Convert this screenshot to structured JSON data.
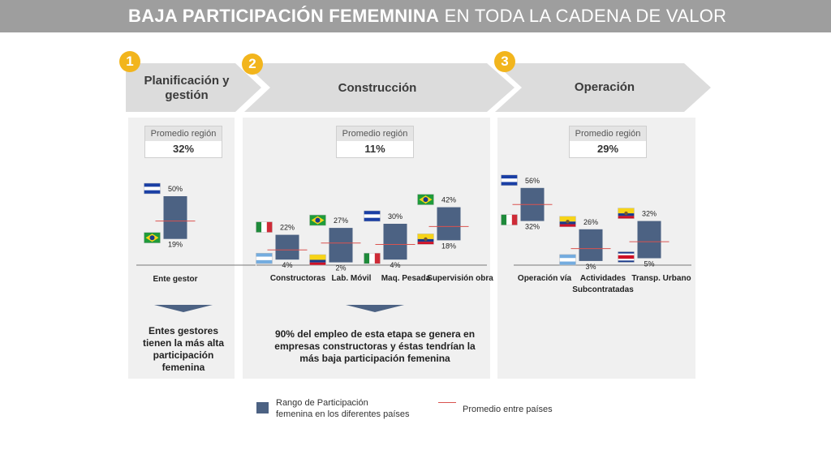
{
  "header": {
    "title_bold": "BAJA PARTICIPACIÓN FEMEMNINA",
    "title_rest": "EN TODA LA CADENA DE VALOR"
  },
  "stages": [
    {
      "number": "1",
      "label_line1": "Planificación y",
      "label_line2": "gestión"
    },
    {
      "number": "2",
      "label": "Construcción"
    },
    {
      "number": "3",
      "label": "Operación"
    }
  ],
  "panels": [
    {
      "avg_label": "Promedio región",
      "avg_value": "32%"
    },
    {
      "avg_label": "Promedio región",
      "avg_value": "11%"
    },
    {
      "avg_label": "Promedio región",
      "avg_value": "29%"
    }
  ],
  "captions": {
    "panel1": [
      "Entes gestores",
      "tienen la más alta",
      "participación",
      "femenina"
    ],
    "panel2": [
      "90% del empleo de esta etapa se genera en",
      "empresas constructoras y éstas tendrían la",
      "más baja participación femenina"
    ]
  },
  "legend": {
    "range_line1": "Rango de Participación",
    "range_line2": "femenina en los diferentes países",
    "avg": "Promedio entre países",
    "range_color": "#4c6283",
    "avg_color": "#d9534f"
  },
  "chart_data": {
    "type": "bar",
    "title": "",
    "categories": [
      "Ente gestor",
      "Constructoras",
      "Lab. Móvil",
      "Maq. Pesada",
      "Supervisión obra",
      "Operación vía",
      "Actividades Subcontratadas",
      "Transp. Urbano"
    ],
    "series": [
      {
        "name": "Rango de Participación femenina en los diferentes países",
        "low": [
          19,
          4,
          2,
          4,
          18,
          32,
          3,
          5
        ],
        "high": [
          50,
          22,
          27,
          30,
          42,
          56,
          26,
          32
        ],
        "low_labels": [
          "19%",
          "4%",
          "2%",
          "4%",
          "18%",
          "32%",
          "3%",
          "5%"
        ],
        "high_labels": [
          "50%",
          "22%",
          "27%",
          "30%",
          "42%",
          "56%",
          "26%",
          "32%"
        ]
      },
      {
        "name": "Promedio entre países",
        "values": [
          32,
          11,
          16,
          15,
          28,
          44,
          12,
          17
        ]
      }
    ],
    "flags": {
      "high": [
        "honduras-flag",
        "mexico-flag",
        "brazil-flag",
        "honduras-flag",
        "brazil-flag",
        "honduras-flag",
        "ecuador-flag",
        "ecuador-flag"
      ],
      "low": [
        "brazil-flag",
        "argentina-flag",
        "colombia-flag",
        "mexico-flag",
        "ecuador-flag",
        "mexico-flag",
        "argentina-flag",
        "costa-rica-flag"
      ]
    },
    "grid": false,
    "legend_position": "bottom"
  }
}
